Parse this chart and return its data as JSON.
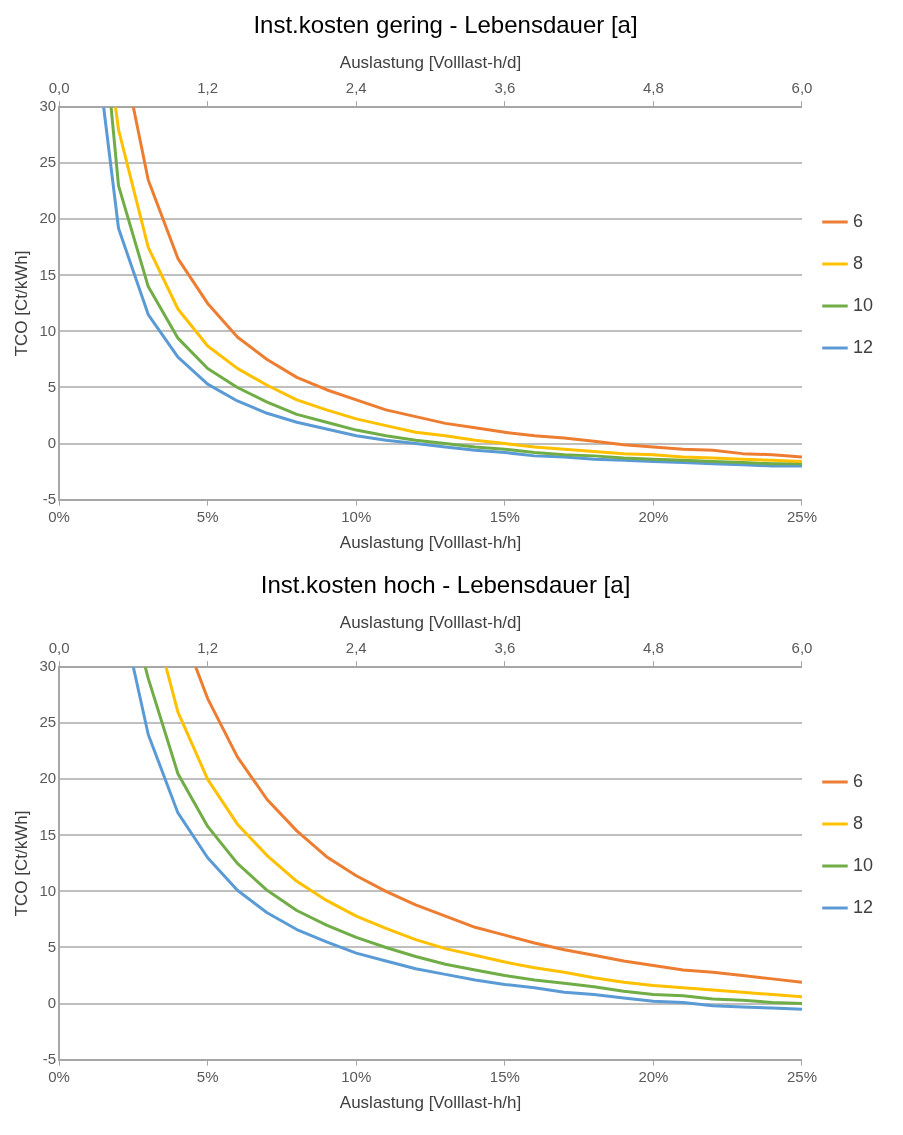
{
  "chart_data": [
    {
      "type": "line",
      "title": "Inst.kosten gering - Lebensdauer [a]",
      "xlabel": "Auslastung [Volllast-h/h]",
      "x2label": "Auslastung [Volllast-h/d]",
      "ylabel": "TCO [Ct/kWh]",
      "xlim": [
        0,
        25
      ],
      "xticks": [
        {
          "value": 0,
          "label": "0%"
        },
        {
          "value": 5,
          "label": "5%"
        },
        {
          "value": 10,
          "label": "10%"
        },
        {
          "value": 15,
          "label": "15%"
        },
        {
          "value": 20,
          "label": "20%"
        },
        {
          "value": 25,
          "label": "25%"
        }
      ],
      "x2lim": [
        0,
        6
      ],
      "x2ticks": [
        {
          "value": 0,
          "label": "0,0"
        },
        {
          "value": 1.2,
          "label": "1,2"
        },
        {
          "value": 2.4,
          "label": "2,4"
        },
        {
          "value": 3.6,
          "label": "3,6"
        },
        {
          "value": 4.8,
          "label": "4,8"
        },
        {
          "value": 6,
          "label": "6,0"
        }
      ],
      "ylim": [
        -5,
        30
      ],
      "yticks": [
        -5,
        0,
        5,
        10,
        15,
        20,
        25,
        30
      ],
      "grid": "y",
      "legend": "right",
      "marker": "none",
      "line_style": "solid",
      "series": [
        {
          "name": "6",
          "color": "#ed7d31",
          "x": [
            2.5,
            3,
            4,
            5,
            6,
            7,
            8,
            9,
            10,
            11,
            12,
            13,
            14,
            15,
            16,
            17,
            18,
            19,
            20,
            21,
            22,
            23,
            24,
            25
          ],
          "values": [
            30,
            23.5,
            16.5,
            12.5,
            9.5,
            7.5,
            5.9,
            4.8,
            3.9,
            3.0,
            2.4,
            1.8,
            1.4,
            1.0,
            0.7,
            0.5,
            0.2,
            -0.1,
            -0.3,
            -0.5,
            -0.6,
            -0.9,
            -1.0,
            -1.2
          ]
        },
        {
          "name": "8",
          "color": "#ffc000",
          "x": [
            1.9,
            2,
            3,
            4,
            5,
            6,
            7,
            8,
            9,
            10,
            11,
            12,
            13,
            14,
            15,
            16,
            17,
            18,
            19,
            20,
            21,
            22,
            23,
            24,
            25
          ],
          "values": [
            30,
            28,
            17.5,
            12,
            8.7,
            6.7,
            5.2,
            3.9,
            3.0,
            2.2,
            1.6,
            1.0,
            0.7,
            0.3,
            0.0,
            -0.3,
            -0.5,
            -0.7,
            -0.9,
            -1.0,
            -1.2,
            -1.3,
            -1.4,
            -1.5,
            -1.6
          ]
        },
        {
          "name": "10",
          "color": "#70ad47",
          "x": [
            1.75,
            2,
            3,
            4,
            5,
            6,
            7,
            8,
            9,
            10,
            11,
            12,
            13,
            14,
            15,
            16,
            17,
            18,
            19,
            20,
            21,
            22,
            23,
            24,
            25
          ],
          "values": [
            30,
            23,
            14,
            9.4,
            6.7,
            5.0,
            3.7,
            2.6,
            1.9,
            1.2,
            0.7,
            0.3,
            0.0,
            -0.3,
            -0.5,
            -0.8,
            -1.0,
            -1.1,
            -1.3,
            -1.4,
            -1.5,
            -1.6,
            -1.7,
            -1.8,
            -1.8
          ]
        },
        {
          "name": "12",
          "color": "#5b9bd5",
          "x": [
            1.5,
            2,
            3,
            4,
            5,
            6,
            7,
            8,
            9,
            10,
            11,
            12,
            13,
            14,
            15,
            16,
            17,
            18,
            19,
            20,
            21,
            22,
            23,
            24,
            25
          ],
          "values": [
            30,
            19.2,
            11.5,
            7.7,
            5.3,
            3.8,
            2.7,
            1.9,
            1.3,
            0.7,
            0.3,
            0.0,
            -0.3,
            -0.6,
            -0.8,
            -1.1,
            -1.2,
            -1.4,
            -1.5,
            -1.6,
            -1.7,
            -1.8,
            -1.9,
            -2.0,
            -2.0
          ]
        }
      ]
    },
    {
      "type": "line",
      "title": "Inst.kosten hoch - Lebensdauer [a]",
      "xlabel": "Auslastung [Volllast-h/h]",
      "x2label": "Auslastung [Volllast-h/d]",
      "ylabel": "TCO [Ct/kWh]",
      "xlim": [
        0,
        25
      ],
      "xticks": [
        {
          "value": 0,
          "label": "0%"
        },
        {
          "value": 5,
          "label": "5%"
        },
        {
          "value": 10,
          "label": "10%"
        },
        {
          "value": 15,
          "label": "15%"
        },
        {
          "value": 20,
          "label": "20%"
        },
        {
          "value": 25,
          "label": "25%"
        }
      ],
      "x2lim": [
        0,
        6
      ],
      "x2ticks": [
        {
          "value": 0,
          "label": "0,0"
        },
        {
          "value": 1.2,
          "label": "1,2"
        },
        {
          "value": 2.4,
          "label": "2,4"
        },
        {
          "value": 3.6,
          "label": "3,6"
        },
        {
          "value": 4.8,
          "label": "4,8"
        },
        {
          "value": 6,
          "label": "6,0"
        }
      ],
      "ylim": [
        -5,
        30
      ],
      "yticks": [
        -5,
        0,
        5,
        10,
        15,
        20,
        25,
        30
      ],
      "grid": "y",
      "legend": "right",
      "marker": "none",
      "line_style": "solid",
      "series": [
        {
          "name": "6",
          "color": "#ed7d31",
          "x": [
            4.6,
            5,
            6,
            7,
            8,
            9,
            10,
            11,
            12,
            13,
            14,
            15,
            16,
            17,
            18,
            19,
            20,
            21,
            22,
            23,
            24,
            25
          ],
          "values": [
            30,
            27.2,
            22,
            18.2,
            15.4,
            13.1,
            11.4,
            10,
            8.8,
            7.8,
            6.8,
            6.1,
            5.4,
            4.8,
            4.3,
            3.8,
            3.4,
            3.0,
            2.8,
            2.5,
            2.2,
            1.9
          ]
        },
        {
          "name": "8",
          "color": "#ffc000",
          "x": [
            3.6,
            4,
            5,
            6,
            7,
            8,
            9,
            10,
            11,
            12,
            13,
            14,
            15,
            16,
            17,
            18,
            19,
            20,
            21,
            22,
            23,
            24,
            25
          ],
          "values": [
            30,
            26,
            20,
            16,
            13.2,
            10.9,
            9.2,
            7.8,
            6.7,
            5.7,
            4.9,
            4.3,
            3.7,
            3.2,
            2.8,
            2.3,
            1.9,
            1.6,
            1.4,
            1.2,
            1.0,
            0.8,
            0.6
          ]
        },
        {
          "name": "10",
          "color": "#70ad47",
          "x": [
            2.9,
            3,
            4,
            5,
            6,
            7,
            8,
            9,
            10,
            11,
            12,
            13,
            14,
            15,
            16,
            17,
            18,
            19,
            20,
            21,
            22,
            23,
            24,
            25
          ],
          "values": [
            30,
            29,
            20.5,
            15.8,
            12.5,
            10.1,
            8.3,
            7,
            5.9,
            5.0,
            4.2,
            3.5,
            3.0,
            2.5,
            2.1,
            1.8,
            1.5,
            1.1,
            0.8,
            0.7,
            0.4,
            0.3,
            0.1,
            0.0
          ]
        },
        {
          "name": "12",
          "color": "#5b9bd5",
          "x": [
            2.5,
            3,
            4,
            5,
            6,
            7,
            8,
            9,
            10,
            11,
            12,
            13,
            14,
            15,
            16,
            17,
            18,
            19,
            20,
            21,
            22,
            23,
            24,
            25
          ],
          "values": [
            30,
            24,
            17,
            13,
            10.1,
            8.1,
            6.6,
            5.5,
            4.5,
            3.8,
            3.1,
            2.6,
            2.1,
            1.7,
            1.4,
            1.0,
            0.8,
            0.5,
            0.2,
            0.1,
            -0.2,
            -0.3,
            -0.4,
            -0.5
          ]
        }
      ]
    }
  ]
}
